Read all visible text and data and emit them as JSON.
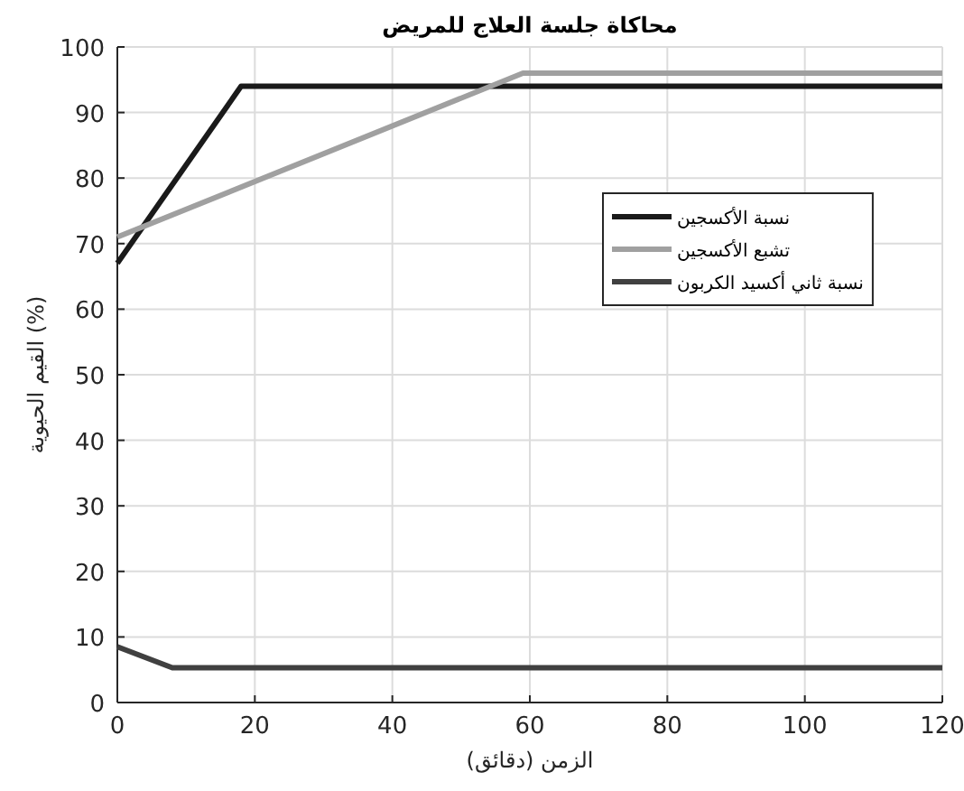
{
  "chart_data": {
    "type": "line",
    "title": "محاكاة جلسة العلاج للمريض",
    "xlabel": "الزمن (دقائق)",
    "ylabel": "القيم الحيوية (%)",
    "xlim": [
      0,
      120
    ],
    "xticks": [
      0,
      20,
      40,
      60,
      80,
      100,
      120
    ],
    "ylim": [
      0,
      100
    ],
    "yticks": [
      0,
      10,
      20,
      30,
      40,
      50,
      60,
      70,
      80,
      90,
      100
    ],
    "grid": true,
    "legend": "right",
    "line_style": "solid",
    "series": [
      {
        "name": "نسبة الأكسجين",
        "color": "#1a1a1a",
        "x": [
          0,
          18,
          120
        ],
        "values": [
          67,
          94,
          94
        ]
      },
      {
        "name": "تشبع الأكسجين",
        "color": "#a0a0a0",
        "x": [
          0,
          59,
          120
        ],
        "values": [
          71,
          96,
          96
        ]
      },
      {
        "name": "نسبة ثاني أكسيد الكربون",
        "color": "#404040",
        "x": [
          0,
          8,
          120
        ],
        "values": [
          8.5,
          5.3,
          5.3
        ]
      }
    ]
  }
}
